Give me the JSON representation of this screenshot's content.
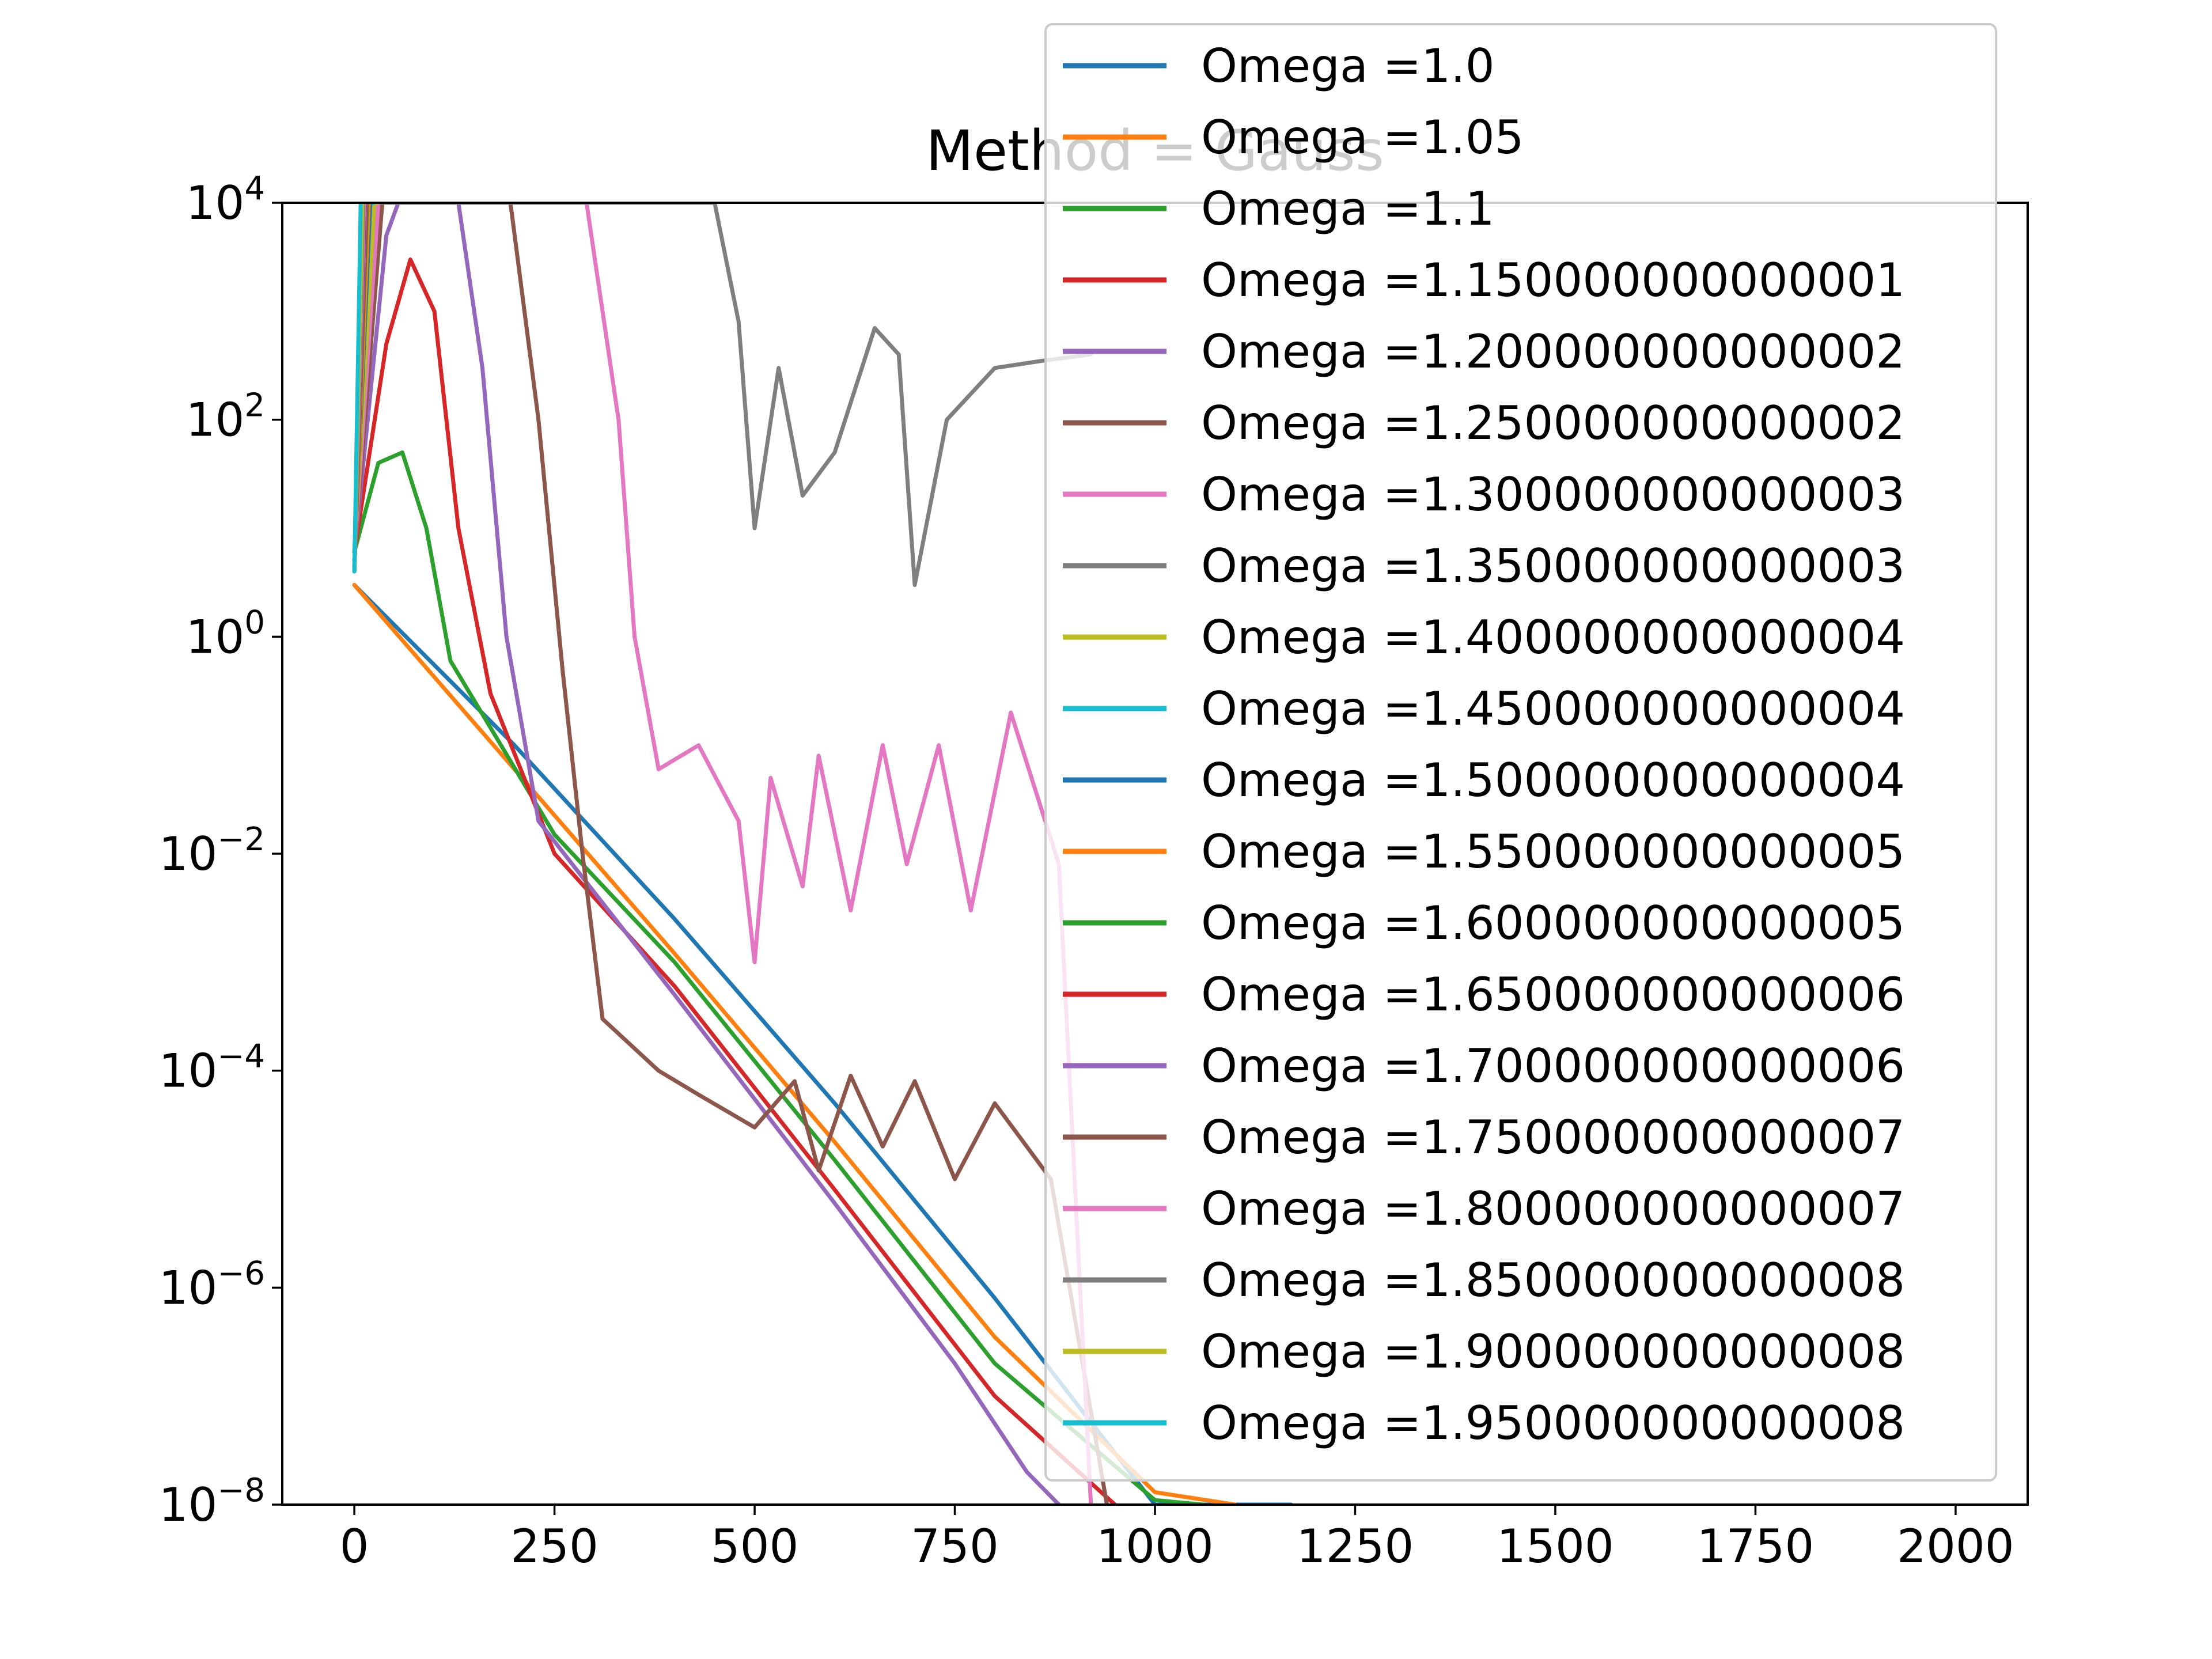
{
  "chart_data": {
    "type": "line",
    "title": "Method = Gauss",
    "xlabel": "",
    "ylabel": "",
    "xlim": [
      -90,
      2090
    ],
    "ylim": [
      1e-08,
      10000.0
    ],
    "yscale": "log",
    "grid": false,
    "legend_position": "top-right",
    "x_ticks": [
      {
        "value": 0,
        "label": "0"
      },
      {
        "value": 250,
        "label": "250"
      },
      {
        "value": 500,
        "label": "500"
      },
      {
        "value": 750,
        "label": "750"
      },
      {
        "value": 1000,
        "label": "1000"
      },
      {
        "value": 1250,
        "label": "1250"
      },
      {
        "value": 1500,
        "label": "1500"
      },
      {
        "value": 1750,
        "label": "1750"
      },
      {
        "value": 2000,
        "label": "2000"
      }
    ],
    "y_ticks": [
      {
        "value": 10000.0,
        "base": "10",
        "exp": "4"
      },
      {
        "value": 100.0,
        "base": "10",
        "exp": "2"
      },
      {
        "value": 1.0,
        "base": "10",
        "exp": "0"
      },
      {
        "value": 0.01,
        "base": "10",
        "exp": "−2"
      },
      {
        "value": 0.0001,
        "base": "10",
        "exp": "−4"
      },
      {
        "value": 1e-06,
        "base": "10",
        "exp": "−6"
      },
      {
        "value": 1e-08,
        "base": "10",
        "exp": "−8"
      }
    ],
    "series": [
      {
        "name": "Omega =1.0",
        "color": "#1f77b4",
        "points": [
          [
            0,
            3
          ],
          [
            200,
            0.1
          ],
          [
            400,
            0.0025
          ],
          [
            600,
            5e-05
          ],
          [
            800,
            8e-07
          ],
          [
            1000,
            1e-08
          ],
          [
            1170,
            1e-08
          ]
        ]
      },
      {
        "name": "Omega =1.05",
        "color": "#ff7f0e",
        "points": [
          [
            0,
            3
          ],
          [
            200,
            0.06
          ],
          [
            400,
            0.0012
          ],
          [
            600,
            2.2e-05
          ],
          [
            800,
            3.5e-07
          ],
          [
            1000,
            1.3e-08
          ],
          [
            1100,
            1e-08
          ]
        ]
      },
      {
        "name": "Omega =1.1",
        "color": "#2ca02c",
        "points": [
          [
            0,
            6
          ],
          [
            30,
            40
          ],
          [
            60,
            50
          ],
          [
            90,
            10
          ],
          [
            120,
            0.6
          ],
          [
            250,
            0.015
          ],
          [
            400,
            0.001
          ],
          [
            600,
            1.5e-05
          ],
          [
            800,
            2e-07
          ],
          [
            1000,
            1.1e-08
          ],
          [
            1060,
            1e-08
          ]
        ]
      },
      {
        "name": "Omega =1.150000000000001",
        "color": "#d62728",
        "points": [
          [
            0,
            6
          ],
          [
            40,
            500
          ],
          [
            70,
            3000
          ],
          [
            100,
            1000
          ],
          [
            130,
            10
          ],
          [
            170,
            0.3
          ],
          [
            250,
            0.01
          ],
          [
            400,
            0.0006
          ],
          [
            600,
            8e-06
          ],
          [
            800,
            1e-07
          ],
          [
            950,
            1e-08
          ]
        ]
      },
      {
        "name": "Omega =1.200000000000002",
        "color": "#9467bd",
        "points": [
          [
            0,
            6
          ],
          [
            40,
            5000
          ],
          [
            55,
            10000
          ],
          [
            130,
            10000
          ],
          [
            160,
            300
          ],
          [
            190,
            1
          ],
          [
            230,
            0.02
          ],
          [
            400,
            0.0005
          ],
          [
            600,
            6e-06
          ],
          [
            750,
            2e-07
          ],
          [
            840,
            2e-08
          ],
          [
            880,
            1e-08
          ]
        ]
      },
      {
        "name": "Omega =1.250000000000002",
        "color": "#8c564b",
        "points": [
          [
            0,
            6
          ],
          [
            35,
            10000
          ],
          [
            195,
            10000
          ],
          [
            230,
            100
          ],
          [
            260,
            0.5
          ],
          [
            285,
            0.01
          ],
          [
            310,
            0.0003
          ],
          [
            380,
            0.0001
          ],
          [
            430,
            6e-05
          ],
          [
            500,
            3e-05
          ],
          [
            550,
            8e-05
          ],
          [
            580,
            1.2e-05
          ],
          [
            620,
            9e-05
          ],
          [
            660,
            2e-05
          ],
          [
            700,
            8e-05
          ],
          [
            750,
            1e-05
          ],
          [
            800,
            5e-05
          ],
          [
            870,
            1e-05
          ],
          [
            940,
            1e-08
          ]
        ]
      },
      {
        "name": "Omega =1.300000000000003",
        "color": "#e377c2",
        "points": [
          [
            0,
            6
          ],
          [
            30,
            10000
          ],
          [
            290,
            10000
          ],
          [
            330,
            100
          ],
          [
            350,
            1
          ],
          [
            380,
            0.06
          ],
          [
            430,
            0.1
          ],
          [
            480,
            0.02
          ],
          [
            500,
            0.001
          ],
          [
            520,
            0.05
          ],
          [
            560,
            0.005
          ],
          [
            580,
            0.08
          ],
          [
            620,
            0.003
          ],
          [
            660,
            0.1
          ],
          [
            690,
            0.008
          ],
          [
            730,
            0.1
          ],
          [
            770,
            0.003
          ],
          [
            820,
            0.2
          ],
          [
            880,
            0.008
          ],
          [
            920,
            1e-08
          ]
        ]
      },
      {
        "name": "Omega =1.350000000000003",
        "color": "#7f7f7f",
        "points": [
          [
            0,
            6
          ],
          [
            25,
            10000
          ],
          [
            450,
            10000
          ],
          [
            480,
            800
          ],
          [
            500,
            10
          ],
          [
            530,
            300
          ],
          [
            560,
            20
          ],
          [
            600,
            50
          ],
          [
            650,
            700
          ],
          [
            680,
            400
          ],
          [
            700,
            3
          ],
          [
            740,
            100
          ],
          [
            800,
            300
          ],
          [
            860,
            350
          ],
          [
            920,
            400
          ]
        ]
      },
      {
        "name": "Omega =1.400000000000004",
        "color": "#bcbd22",
        "points": [
          [
            0,
            6
          ],
          [
            25,
            10000
          ],
          [
            30,
            10000
          ]
        ]
      },
      {
        "name": "Omega =1.450000000000004",
        "color": "#17becf",
        "points": [
          [
            0,
            6
          ],
          [
            20,
            10000
          ],
          [
            25,
            10000
          ]
        ]
      },
      {
        "name": "Omega =1.500000000000004",
        "color": "#1f77b4",
        "points": [
          [
            0,
            5
          ],
          [
            20,
            10000
          ]
        ]
      },
      {
        "name": "Omega =1.550000000000005",
        "color": "#ff7f0e",
        "points": [
          [
            0,
            4
          ],
          [
            18,
            10000
          ]
        ]
      },
      {
        "name": "Omega =1.600000000000005",
        "color": "#2ca02c",
        "points": [
          [
            0,
            4
          ],
          [
            16,
            10000
          ]
        ]
      },
      {
        "name": "Omega =1.650000000000006",
        "color": "#d62728",
        "points": [
          [
            0,
            4
          ],
          [
            15,
            10000
          ]
        ]
      },
      {
        "name": "Omega =1.700000000000006",
        "color": "#9467bd",
        "points": [
          [
            0,
            4
          ],
          [
            14,
            10000
          ]
        ]
      },
      {
        "name": "Omega =1.750000000000007",
        "color": "#8c564b",
        "points": [
          [
            0,
            4
          ],
          [
            13,
            10000
          ]
        ]
      },
      {
        "name": "Omega =1.800000000000007",
        "color": "#e377c2",
        "points": [
          [
            0,
            4
          ],
          [
            12,
            10000
          ]
        ]
      },
      {
        "name": "Omega =1.850000000000008",
        "color": "#7f7f7f",
        "points": [
          [
            0,
            4
          ],
          [
            11,
            10000
          ]
        ]
      },
      {
        "name": "Omega =1.900000000000008",
        "color": "#bcbd22",
        "points": [
          [
            0,
            4
          ],
          [
            10,
            10000
          ]
        ]
      },
      {
        "name": "Omega =1.950000000000008",
        "color": "#17becf",
        "points": [
          [
            0,
            4
          ],
          [
            8,
            10000
          ]
        ]
      }
    ]
  }
}
